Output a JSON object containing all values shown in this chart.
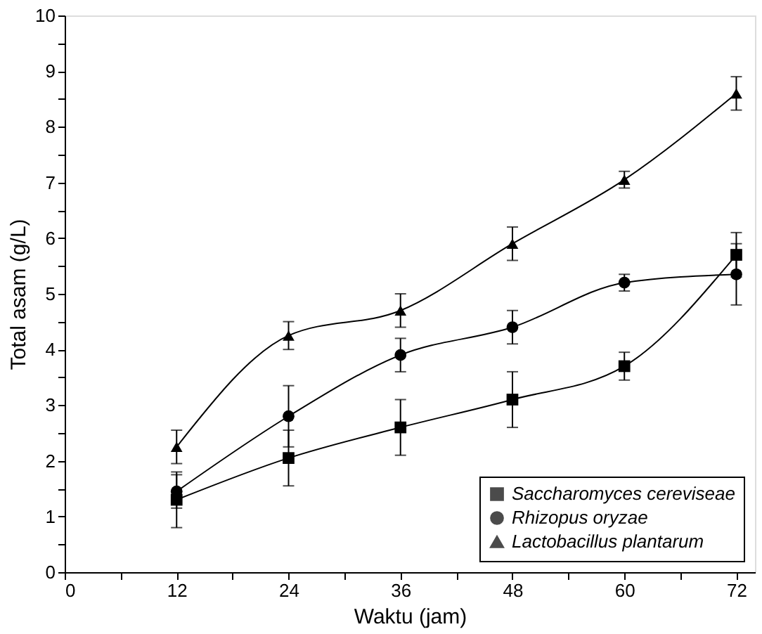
{
  "chart_data": {
    "type": "line",
    "xlabel": "Waktu (jam)",
    "ylabel": "Total asam (g/L)",
    "x": [
      12,
      24,
      36,
      48,
      60,
      72
    ],
    "xlim": [
      0,
      74
    ],
    "xticks": [
      0,
      {
        "value": 6,
        "label": null
      },
      12,
      {
        "value": 18,
        "label": null
      },
      24,
      {
        "value": 30,
        "label": null
      },
      36,
      {
        "value": 42,
        "label": null
      },
      48,
      {
        "value": 54,
        "label": null
      },
      60,
      {
        "value": 66,
        "label": null
      },
      72
    ],
    "ylim": [
      0,
      10
    ],
    "yticks": [
      0,
      {
        "value": 0.5,
        "label": null
      },
      1,
      {
        "value": 1.5,
        "label": null
      },
      2,
      {
        "value": 2.5,
        "label": null
      },
      3,
      {
        "value": 3.5,
        "label": null
      },
      4,
      {
        "value": 4.5,
        "label": null
      },
      5,
      {
        "value": 5.5,
        "label": null
      },
      6,
      {
        "value": 6.5,
        "label": null
      },
      7,
      {
        "value": 7.5,
        "label": null
      },
      8,
      {
        "value": 8.5,
        "label": null
      },
      9,
      {
        "value": 9.5,
        "label": null
      },
      10
    ],
    "grid": false,
    "legend": "bottom right",
    "line_style": "solid",
    "series": [
      {
        "name": "Saccharomyces cereviseae",
        "color": "#000000",
        "marker": "square",
        "values": [
          1.3,
          2.05,
          2.6,
          3.1,
          3.7,
          5.7
        ],
        "errors": [
          0.5,
          0.5,
          0.5,
          0.5,
          0.25,
          0.4
        ]
      },
      {
        "name": "Rhizopus oryzae",
        "color": "#000000",
        "marker": "circle",
        "values": [
          1.45,
          2.8,
          3.9,
          4.4,
          5.2,
          5.35
        ],
        "errors": [
          0.3,
          0.55,
          0.3,
          0.3,
          0.15,
          0.55
        ]
      },
      {
        "name": "Lactobacillus plantarum",
        "color": "#000000",
        "marker": "triangle",
        "values": [
          2.25,
          4.25,
          4.7,
          5.9,
          7.05,
          8.6
        ],
        "errors": [
          0.3,
          0.25,
          0.3,
          0.3,
          0.15,
          0.3
        ]
      }
    ]
  }
}
